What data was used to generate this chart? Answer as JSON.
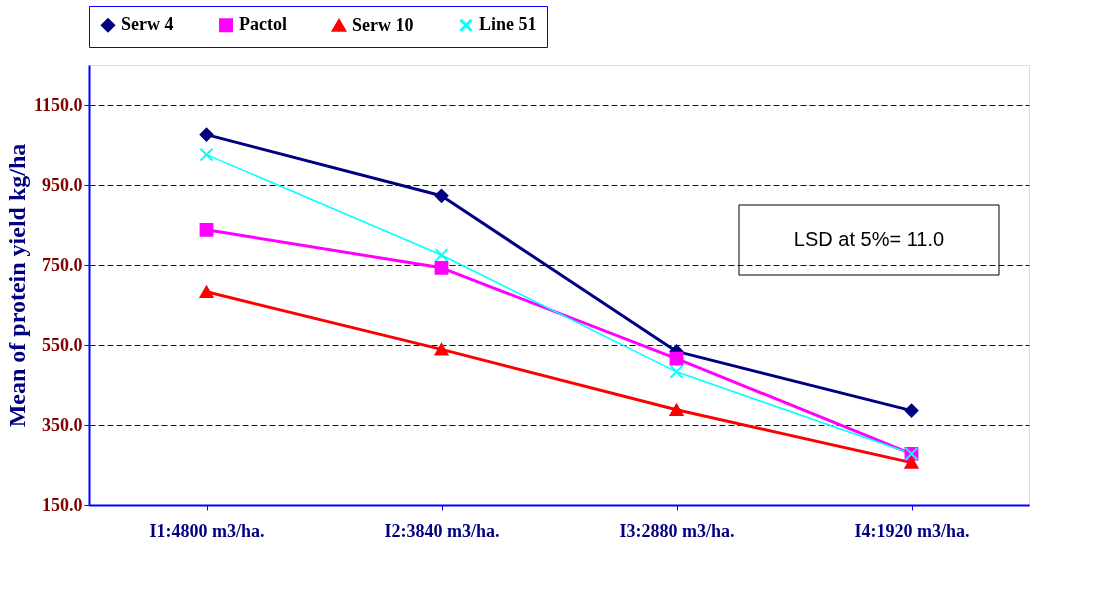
{
  "chart_data": {
    "type": "line",
    "ylabel": "Mean of protein yield kg/ha",
    "categories": [
      "I1:4800 m3/ha.",
      "I2:3840 m3/ha.",
      "I3:2880 m3/ha.",
      "I4:1920 m3/ha."
    ],
    "series": [
      {
        "name": "Serw 4",
        "color": "#000080",
        "marker": "diamond",
        "values": [
          1076,
          923,
          534,
          386
        ]
      },
      {
        "name": "Pactol",
        "color": "#ff00ff",
        "marker": "square",
        "values": [
          838,
          743,
          516,
          278
        ]
      },
      {
        "name": "Serw 10",
        "color": "#ff0000",
        "marker": "triangle",
        "values": [
          683,
          539,
          388,
          256
        ]
      },
      {
        "name": "Line 51",
        "color": "#00ffff",
        "marker": "cross",
        "values": [
          1026,
          775,
          483,
          278
        ]
      }
    ],
    "ylim": [
      150,
      1250
    ],
    "yticks": [
      {
        "value": 150,
        "label": "150.0"
      },
      {
        "value": 350,
        "label": "350.0"
      },
      {
        "value": 550,
        "label": "550.0"
      },
      {
        "value": 750,
        "label": "750.0"
      },
      {
        "value": 950,
        "label": "950.0"
      },
      {
        "value": 1150,
        "label": "1150.0"
      }
    ],
    "grid": "y",
    "line_style": "solid",
    "legend": "top",
    "annotations": [
      "LSD at 5%= 11.0"
    ]
  }
}
